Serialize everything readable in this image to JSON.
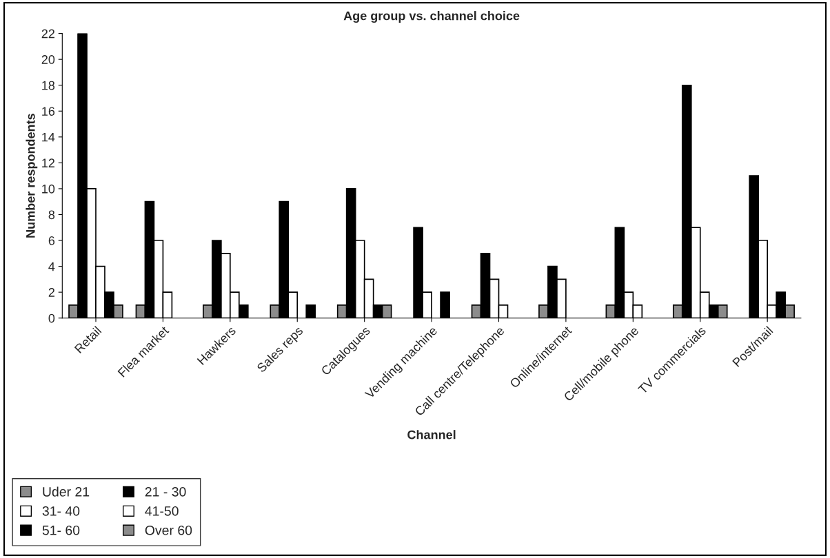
{
  "chart_data": {
    "type": "bar",
    "title": "Age group vs. channel choice",
    "xlabel": "Channel",
    "ylabel": "Number respondents",
    "categories": [
      "Retail",
      "Flea market",
      "Hawkers",
      "Sales reps",
      "Catalogues",
      "Vending machine",
      "Call centre/Telephone",
      "Online/internet",
      "Cell/mobile phone",
      "TV commercials",
      "Post/mail"
    ],
    "series": [
      {
        "name": "Uder 21",
        "color": "#8c8c8c",
        "values": [
          1,
          1,
          1,
          1,
          1,
          0,
          1,
          1,
          1,
          1,
          0
        ]
      },
      {
        "name": "21 - 30",
        "color": "#000000",
        "values": [
          22,
          9,
          6,
          9,
          10,
          7,
          5,
          4,
          7,
          18,
          11
        ]
      },
      {
        "name": "31- 40",
        "color": "#ffffff",
        "values": [
          10,
          6,
          5,
          2,
          6,
          2,
          3,
          3,
          2,
          7,
          6
        ]
      },
      {
        "name": "41-50",
        "color": "#ffffff",
        "values": [
          4,
          2,
          2,
          0,
          3,
          0,
          1,
          0,
          1,
          2,
          1
        ]
      },
      {
        "name": "51- 60",
        "color": "#000000",
        "values": [
          2,
          0,
          1,
          1,
          1,
          2,
          0,
          0,
          0,
          1,
          2
        ]
      },
      {
        "name": "Over 60",
        "color": "#8c8c8c",
        "values": [
          1,
          0,
          0,
          0,
          1,
          0,
          0,
          0,
          0,
          1,
          1
        ]
      }
    ],
    "ylim": [
      0,
      22
    ],
    "yticks": [
      0,
      2,
      4,
      6,
      8,
      10,
      12,
      14,
      16,
      18,
      20,
      22
    ],
    "grid": false,
    "legend": "bottom left"
  }
}
